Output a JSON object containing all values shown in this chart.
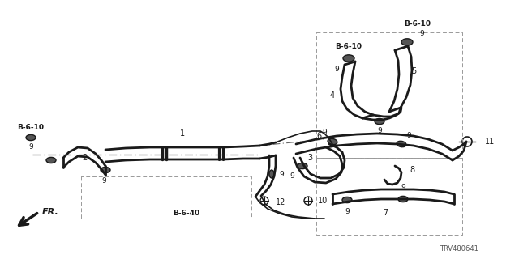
{
  "bg_color": "#ffffff",
  "line_color": "#1a1a1a",
  "part_id": "TRV480641",
  "fig_w": 6.4,
  "fig_h": 3.2,
  "dpi": 100,
  "xlim": [
    0,
    640
  ],
  "ylim": [
    0,
    320
  ]
}
